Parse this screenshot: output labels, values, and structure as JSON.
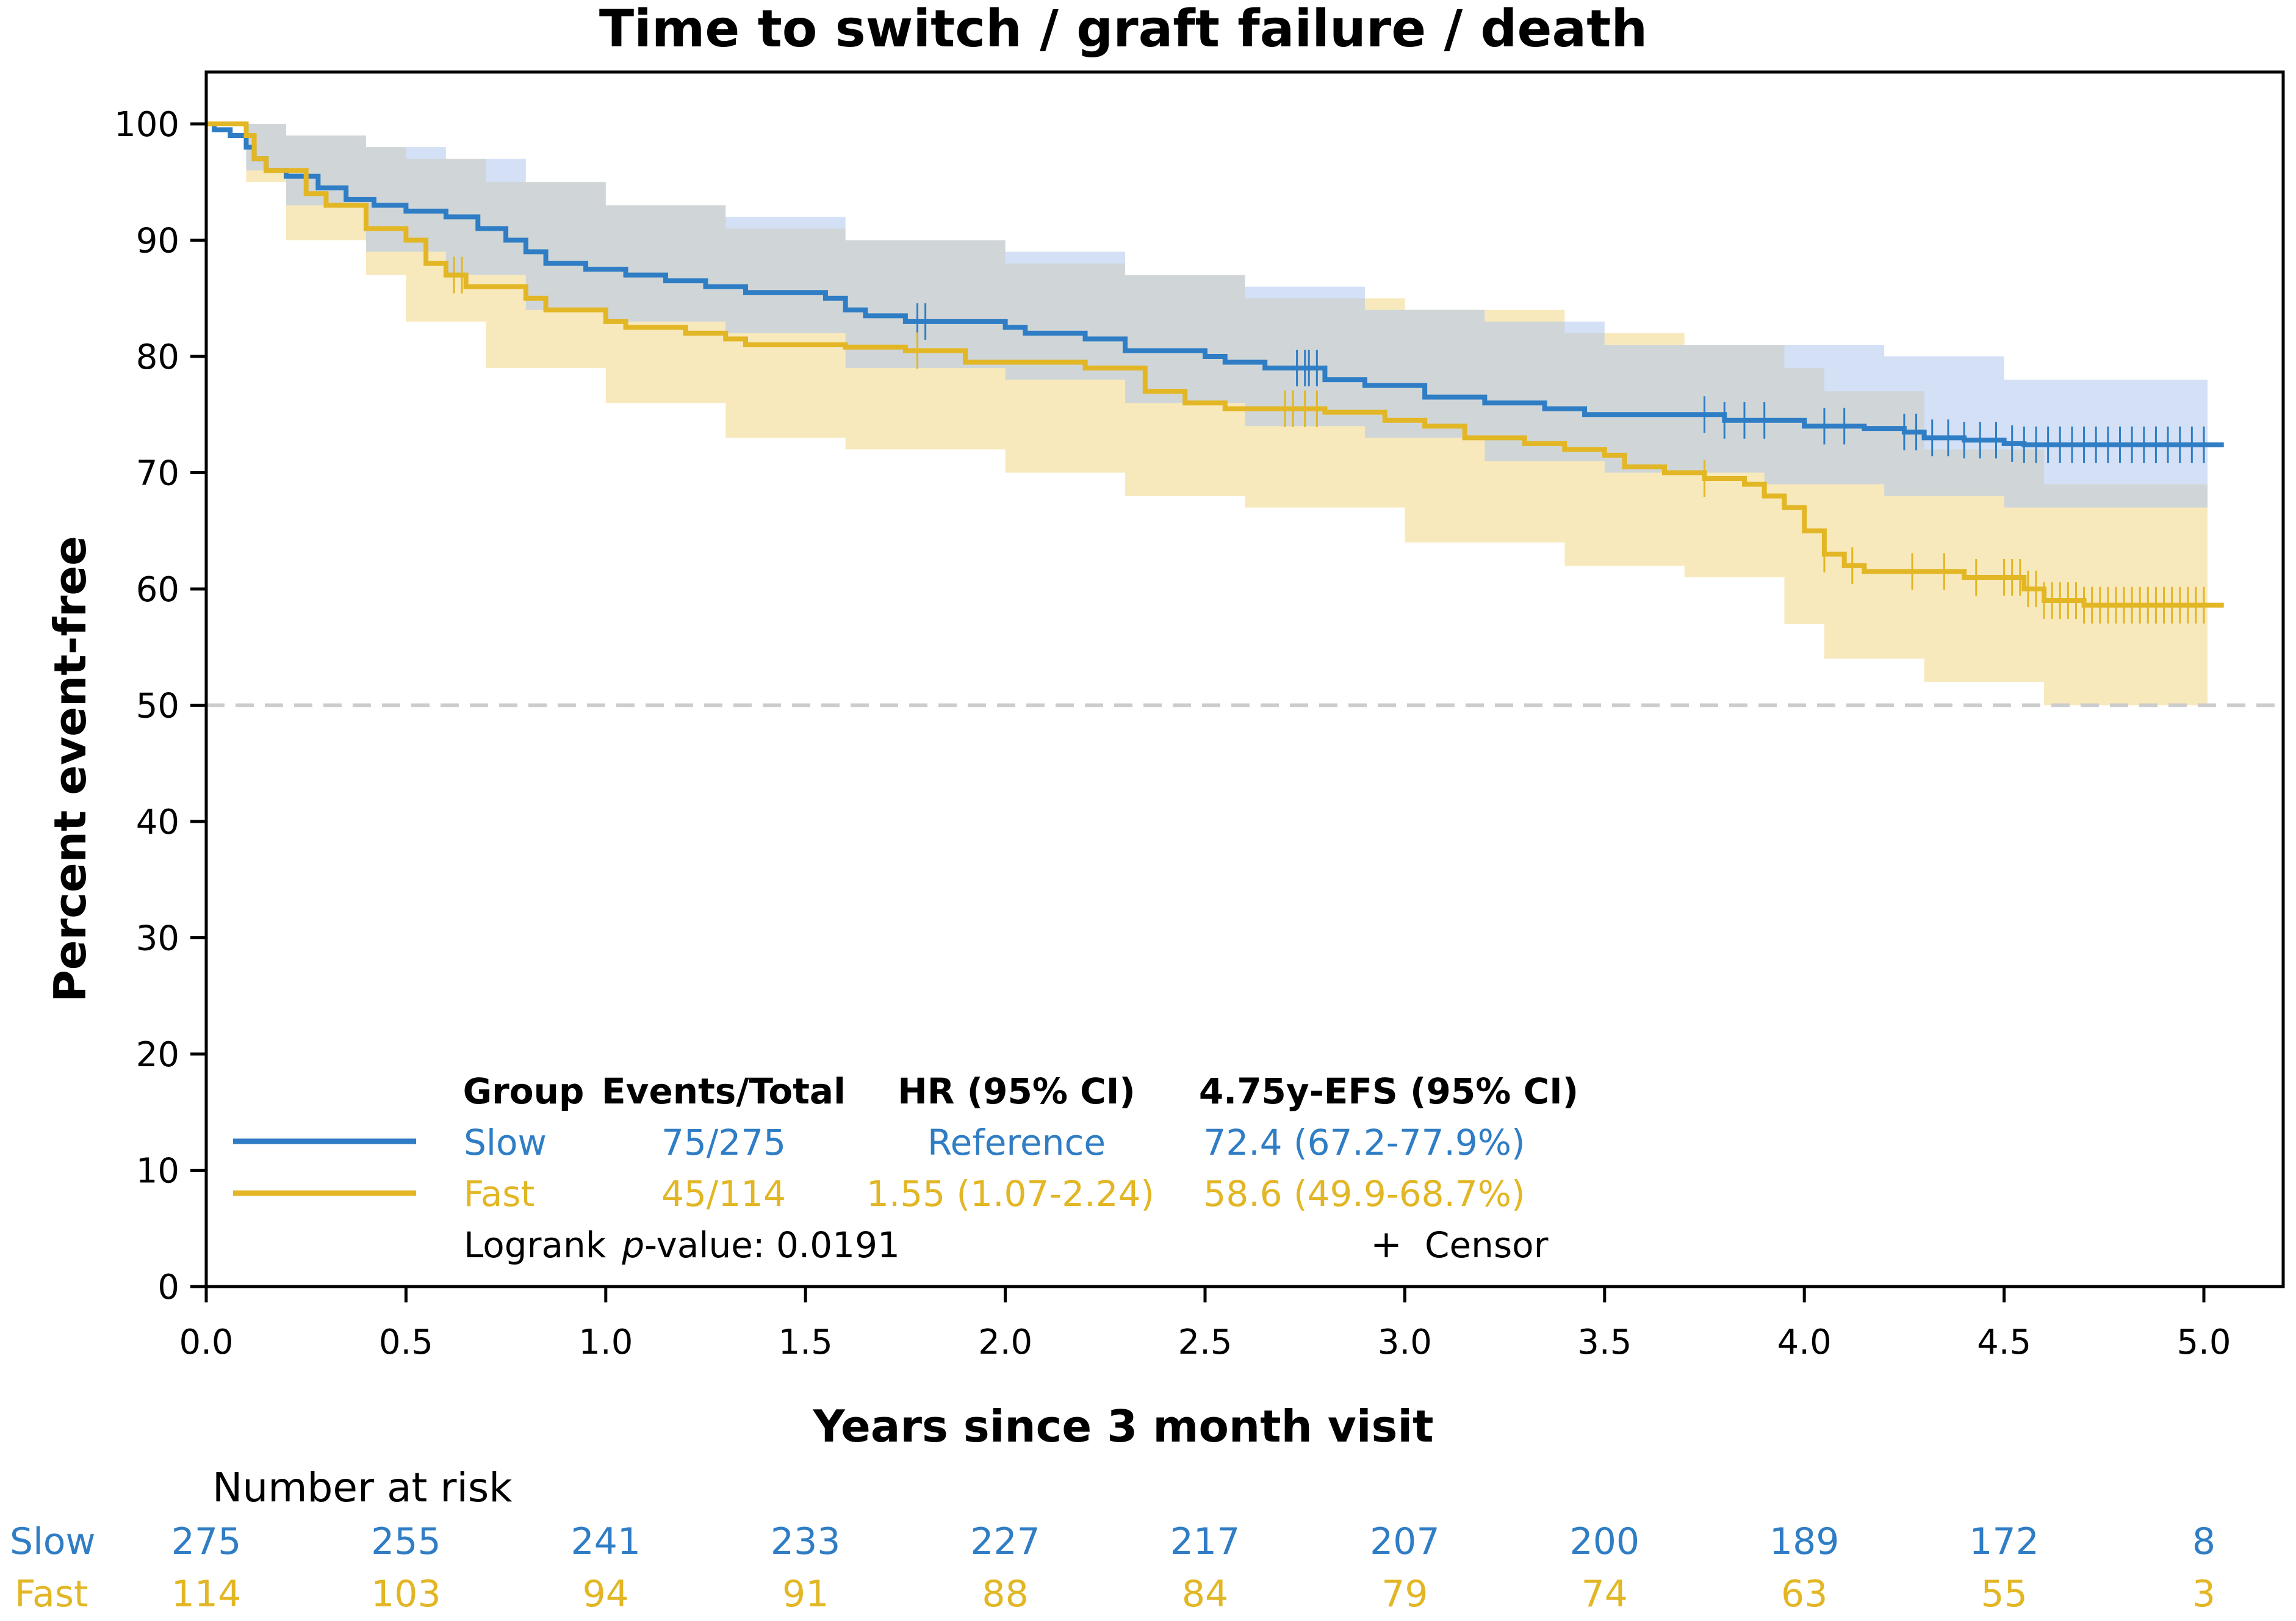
{
  "colors": {
    "slow": "#2f7dc4",
    "fast": "#e2b624",
    "slow_band": "#aec7ee",
    "fast_band": "#f5e2a6",
    "ref_line": "#cccccc",
    "axis": "#000000"
  },
  "chart_data": {
    "type": "line",
    "subtype": "kaplan-meier",
    "title": "Time to switch / graft failure / death",
    "xlabel": "Years since 3 month visit",
    "ylabel": "Percent event-free",
    "xlim": [
      0,
      5.2
    ],
    "ylim": [
      0,
      102
    ],
    "x_ticks": [
      "0.0",
      "0.5",
      "1.0",
      "1.5",
      "2.0",
      "2.5",
      "3.0",
      "3.5",
      "4.0",
      "4.5",
      "5.0"
    ],
    "x_tick_values": [
      0,
      0.5,
      1.0,
      1.5,
      2.0,
      2.5,
      3.0,
      3.5,
      4.0,
      4.5,
      5.0
    ],
    "y_ticks": [
      "0",
      "10",
      "20",
      "30",
      "40",
      "50",
      "60",
      "70",
      "80",
      "90",
      "100"
    ],
    "y_tick_values": [
      0,
      10,
      20,
      30,
      40,
      50,
      60,
      70,
      80,
      90,
      100
    ],
    "reference_line": {
      "y": 50,
      "style": "dashed"
    },
    "series": [
      {
        "name": "Slow",
        "color_key": "slow",
        "steps": [
          [
            0,
            100
          ],
          [
            0.02,
            99.5
          ],
          [
            0.06,
            99
          ],
          [
            0.1,
            98
          ],
          [
            0.12,
            97
          ],
          [
            0.15,
            96
          ],
          [
            0.2,
            95.5
          ],
          [
            0.28,
            94.5
          ],
          [
            0.35,
            93.5
          ],
          [
            0.42,
            93
          ],
          [
            0.5,
            92.5
          ],
          [
            0.6,
            92
          ],
          [
            0.68,
            91
          ],
          [
            0.75,
            90
          ],
          [
            0.8,
            89
          ],
          [
            0.85,
            88
          ],
          [
            0.95,
            87.5
          ],
          [
            1.05,
            87
          ],
          [
            1.15,
            86.5
          ],
          [
            1.25,
            86
          ],
          [
            1.35,
            85.5
          ],
          [
            1.55,
            85
          ],
          [
            1.6,
            84
          ],
          [
            1.65,
            83.5
          ],
          [
            1.75,
            83
          ],
          [
            2.0,
            82.5
          ],
          [
            2.05,
            82
          ],
          [
            2.2,
            81.5
          ],
          [
            2.3,
            80.5
          ],
          [
            2.5,
            80
          ],
          [
            2.55,
            79.5
          ],
          [
            2.65,
            79
          ],
          [
            2.8,
            78
          ],
          [
            2.9,
            77.5
          ],
          [
            3.05,
            76.5
          ],
          [
            3.2,
            76
          ],
          [
            3.35,
            75.5
          ],
          [
            3.45,
            75
          ],
          [
            3.8,
            74.5
          ],
          [
            4.0,
            74
          ],
          [
            4.15,
            73.8
          ],
          [
            4.25,
            73.5
          ],
          [
            4.3,
            73
          ],
          [
            4.4,
            72.8
          ],
          [
            4.5,
            72.5
          ],
          [
            4.55,
            72.4
          ],
          [
            5.05,
            72.4
          ]
        ],
        "ci_steps": [
          [
            0,
            100,
            100
          ],
          [
            0.1,
            100,
            96
          ],
          [
            0.2,
            99,
            93
          ],
          [
            0.4,
            98,
            89
          ],
          [
            0.6,
            97,
            87
          ],
          [
            0.8,
            95,
            84
          ],
          [
            1.0,
            93,
            83
          ],
          [
            1.3,
            92,
            82
          ],
          [
            1.6,
            90,
            79
          ],
          [
            2.0,
            89,
            78
          ],
          [
            2.3,
            87,
            76
          ],
          [
            2.6,
            86,
            74
          ],
          [
            2.9,
            84,
            73
          ],
          [
            3.2,
            83,
            71
          ],
          [
            3.5,
            81,
            70
          ],
          [
            3.9,
            81,
            69
          ],
          [
            4.2,
            80,
            68
          ],
          [
            4.5,
            78,
            67
          ],
          [
            5.0,
            78,
            67
          ]
        ],
        "censor_x": [
          1.78,
          1.8,
          2.73,
          2.75,
          2.76,
          2.78,
          3.75,
          3.8,
          3.85,
          3.9,
          4.05,
          4.1,
          4.25,
          4.28,
          4.32,
          4.36,
          4.4,
          4.44,
          4.48,
          4.52,
          4.55,
          4.58,
          4.61,
          4.64,
          4.67,
          4.7,
          4.73,
          4.76,
          4.79,
          4.82,
          4.85,
          4.88,
          4.91,
          4.94,
          4.97,
          5.0
        ]
      },
      {
        "name": "Fast",
        "color_key": "fast",
        "steps": [
          [
            0,
            100
          ],
          [
            0.1,
            99
          ],
          [
            0.12,
            97
          ],
          [
            0.15,
            96
          ],
          [
            0.25,
            94
          ],
          [
            0.3,
            93
          ],
          [
            0.4,
            91
          ],
          [
            0.5,
            90
          ],
          [
            0.55,
            88
          ],
          [
            0.6,
            87
          ],
          [
            0.65,
            86
          ],
          [
            0.8,
            85
          ],
          [
            0.85,
            84
          ],
          [
            1.0,
            83
          ],
          [
            1.05,
            82.5
          ],
          [
            1.2,
            82
          ],
          [
            1.3,
            81.5
          ],
          [
            1.35,
            81
          ],
          [
            1.6,
            80.8
          ],
          [
            1.75,
            80.5
          ],
          [
            1.9,
            79.5
          ],
          [
            2.2,
            79
          ],
          [
            2.35,
            77
          ],
          [
            2.45,
            76
          ],
          [
            2.55,
            75.5
          ],
          [
            2.8,
            75.2
          ],
          [
            2.95,
            74.5
          ],
          [
            3.05,
            74
          ],
          [
            3.15,
            73
          ],
          [
            3.3,
            72.5
          ],
          [
            3.4,
            72
          ],
          [
            3.5,
            71.5
          ],
          [
            3.55,
            70.5
          ],
          [
            3.65,
            70
          ],
          [
            3.75,
            69.5
          ],
          [
            3.85,
            69
          ],
          [
            3.9,
            68
          ],
          [
            3.95,
            67
          ],
          [
            4.0,
            65
          ],
          [
            4.05,
            63
          ],
          [
            4.1,
            62
          ],
          [
            4.15,
            61.5
          ],
          [
            4.4,
            61
          ],
          [
            4.55,
            60
          ],
          [
            4.6,
            59
          ],
          [
            4.7,
            58.6
          ],
          [
            5.05,
            58.6
          ]
        ],
        "ci_steps": [
          [
            0,
            100,
            100
          ],
          [
            0.1,
            100,
            95
          ],
          [
            0.2,
            99,
            90
          ],
          [
            0.4,
            98,
            87
          ],
          [
            0.5,
            97,
            83
          ],
          [
            0.7,
            95,
            79
          ],
          [
            1.0,
            93,
            76
          ],
          [
            1.3,
            91,
            73
          ],
          [
            1.6,
            90,
            72
          ],
          [
            2.0,
            88,
            70
          ],
          [
            2.3,
            87,
            68
          ],
          [
            2.6,
            85,
            67
          ],
          [
            3.0,
            84,
            64
          ],
          [
            3.4,
            82,
            62
          ],
          [
            3.7,
            81,
            61
          ],
          [
            3.95,
            79,
            57
          ],
          [
            4.05,
            77,
            54
          ],
          [
            4.3,
            72,
            52
          ],
          [
            4.6,
            69,
            50
          ],
          [
            5.0,
            69,
            50
          ]
        ],
        "censor_x": [
          0.62,
          0.64,
          1.78,
          2.7,
          2.72,
          2.75,
          2.78,
          3.75,
          4.05,
          4.12,
          4.27,
          4.35,
          4.43,
          4.5,
          4.52,
          4.54,
          4.56,
          4.58,
          4.6,
          4.62,
          4.64,
          4.66,
          4.68,
          4.7,
          4.72,
          4.74,
          4.76,
          4.78,
          4.8,
          4.82,
          4.84,
          4.86,
          4.88,
          4.9,
          4.92,
          4.94,
          4.96,
          4.98,
          5.0
        ]
      }
    ],
    "legend": {
      "headers": {
        "group": "Group",
        "events": "Events/Total",
        "hr": "HR (95% CI)",
        "efs": "4.75y-EFS (95% CI)"
      },
      "rows": [
        {
          "group": "Slow",
          "events": "75/275",
          "hr": "Reference",
          "efs": "72.4 (67.2-77.9%)"
        },
        {
          "group": "Fast",
          "events": "45/114",
          "hr": "1.55 (1.07-2.24)",
          "efs": "58.6 (49.9-68.7%)"
        }
      ],
      "logrank_label": "Logrank",
      "p_label": "p",
      "p_value_text": "-value: 0.0191",
      "censor_symbol": "+",
      "censor_label": "Censor"
    },
    "risk_table": {
      "title": "Number at risk",
      "rows": [
        {
          "name": "Slow",
          "color_key": "slow",
          "values": [
            "275",
            "255",
            "241",
            "233",
            "227",
            "217",
            "207",
            "200",
            "189",
            "172",
            "8"
          ]
        },
        {
          "name": "Fast",
          "color_key": "fast",
          "values": [
            "114",
            "103",
            "94",
            "91",
            "88",
            "84",
            "79",
            "74",
            "63",
            "55",
            "3"
          ]
        }
      ]
    }
  }
}
